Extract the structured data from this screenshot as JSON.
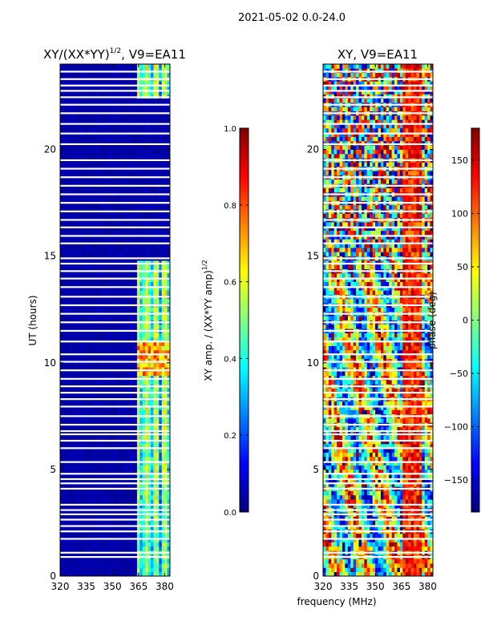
{
  "figure_title": "2021-05-02 0.0-24.0",
  "shared_xlabel": "frequency (MHz)",
  "colors": {
    "jet": [
      "#00007f",
      "#0000ff",
      "#0080ff",
      "#00ffff",
      "#80ff80",
      "#ffff00",
      "#ff8000",
      "#ff0000",
      "#7f0000"
    ],
    "background_plot": "#00007f",
    "gap": "#ffffff"
  },
  "chart_data": [
    {
      "type": "heatmap",
      "title": "XY/(XX*YY)",
      "title_superscript": "1/2",
      "title_suffix": ", V9=EA11",
      "xlabel": "",
      "ylabel": "UT (hours)",
      "xlim": [
        320,
        383
      ],
      "ylim": [
        0,
        24
      ],
      "xticks": [
        "320",
        "335",
        "350",
        "365",
        "380"
      ],
      "xtick_values": [
        320,
        335,
        350,
        365,
        380
      ],
      "yticks": [
        "0",
        "5",
        "10",
        "15",
        "20"
      ],
      "ytick_values": [
        0,
        5,
        10,
        15,
        20
      ],
      "colorbar": {
        "label": "XY amp. / (XX*YY amp)",
        "label_superscript": "1/2",
        "range": [
          0.0,
          1.0
        ],
        "ticks": [
          "0.0",
          "0.2",
          "0.4",
          "0.6",
          "0.8",
          "1.0"
        ],
        "tick_values": [
          0.0,
          0.2,
          0.4,
          0.6,
          0.8,
          1.0
        ]
      },
      "active_band_mhz": [
        364,
        382
      ],
      "peak_band_hours": [
        9.5,
        11
      ]
    },
    {
      "type": "heatmap",
      "title": "XY, V9=EA11",
      "xlabel": "frequency (MHz)",
      "ylabel": "",
      "xlim": [
        320,
        383
      ],
      "ylim": [
        0,
        24
      ],
      "xticks": [
        "320",
        "335",
        "350",
        "365",
        "380"
      ],
      "xtick_values": [
        320,
        335,
        350,
        365,
        380
      ],
      "yticks": [
        "0",
        "5",
        "10",
        "15",
        "20"
      ],
      "ytick_values": [
        0,
        5,
        10,
        15,
        20
      ],
      "colorbar": {
        "label": "phase (deg)",
        "range": [
          -180,
          180
        ],
        "ticks": [
          "−150",
          "−100",
          "−50",
          "0",
          "50",
          "100",
          "150"
        ],
        "tick_values": [
          -150,
          -100,
          -50,
          0,
          50,
          100,
          150
        ]
      }
    }
  ],
  "gap_hours": [
    0.9,
    1.1,
    1.75,
    2.1,
    2.35,
    2.65,
    2.9,
    3.1,
    3.35,
    4.1,
    4.35,
    4.55,
    4.8,
    5.35,
    6.0,
    6.35,
    6.65,
    6.8,
    7.1,
    7.5,
    7.95,
    8.3,
    8.6,
    8.9,
    9.25,
    9.65,
    10.05,
    10.4,
    11.0,
    11.5,
    11.9,
    12.3,
    12.7,
    13.1,
    13.55,
    13.95,
    14.3,
    14.65,
    14.9,
    15.6,
    15.95,
    16.35,
    16.7,
    17.1,
    17.5,
    17.9,
    18.3,
    18.7,
    19.1,
    19.5,
    20.25,
    20.75,
    21.2,
    21.7,
    22.1,
    22.45,
    22.75,
    23.0,
    23.3,
    23.65
  ]
}
